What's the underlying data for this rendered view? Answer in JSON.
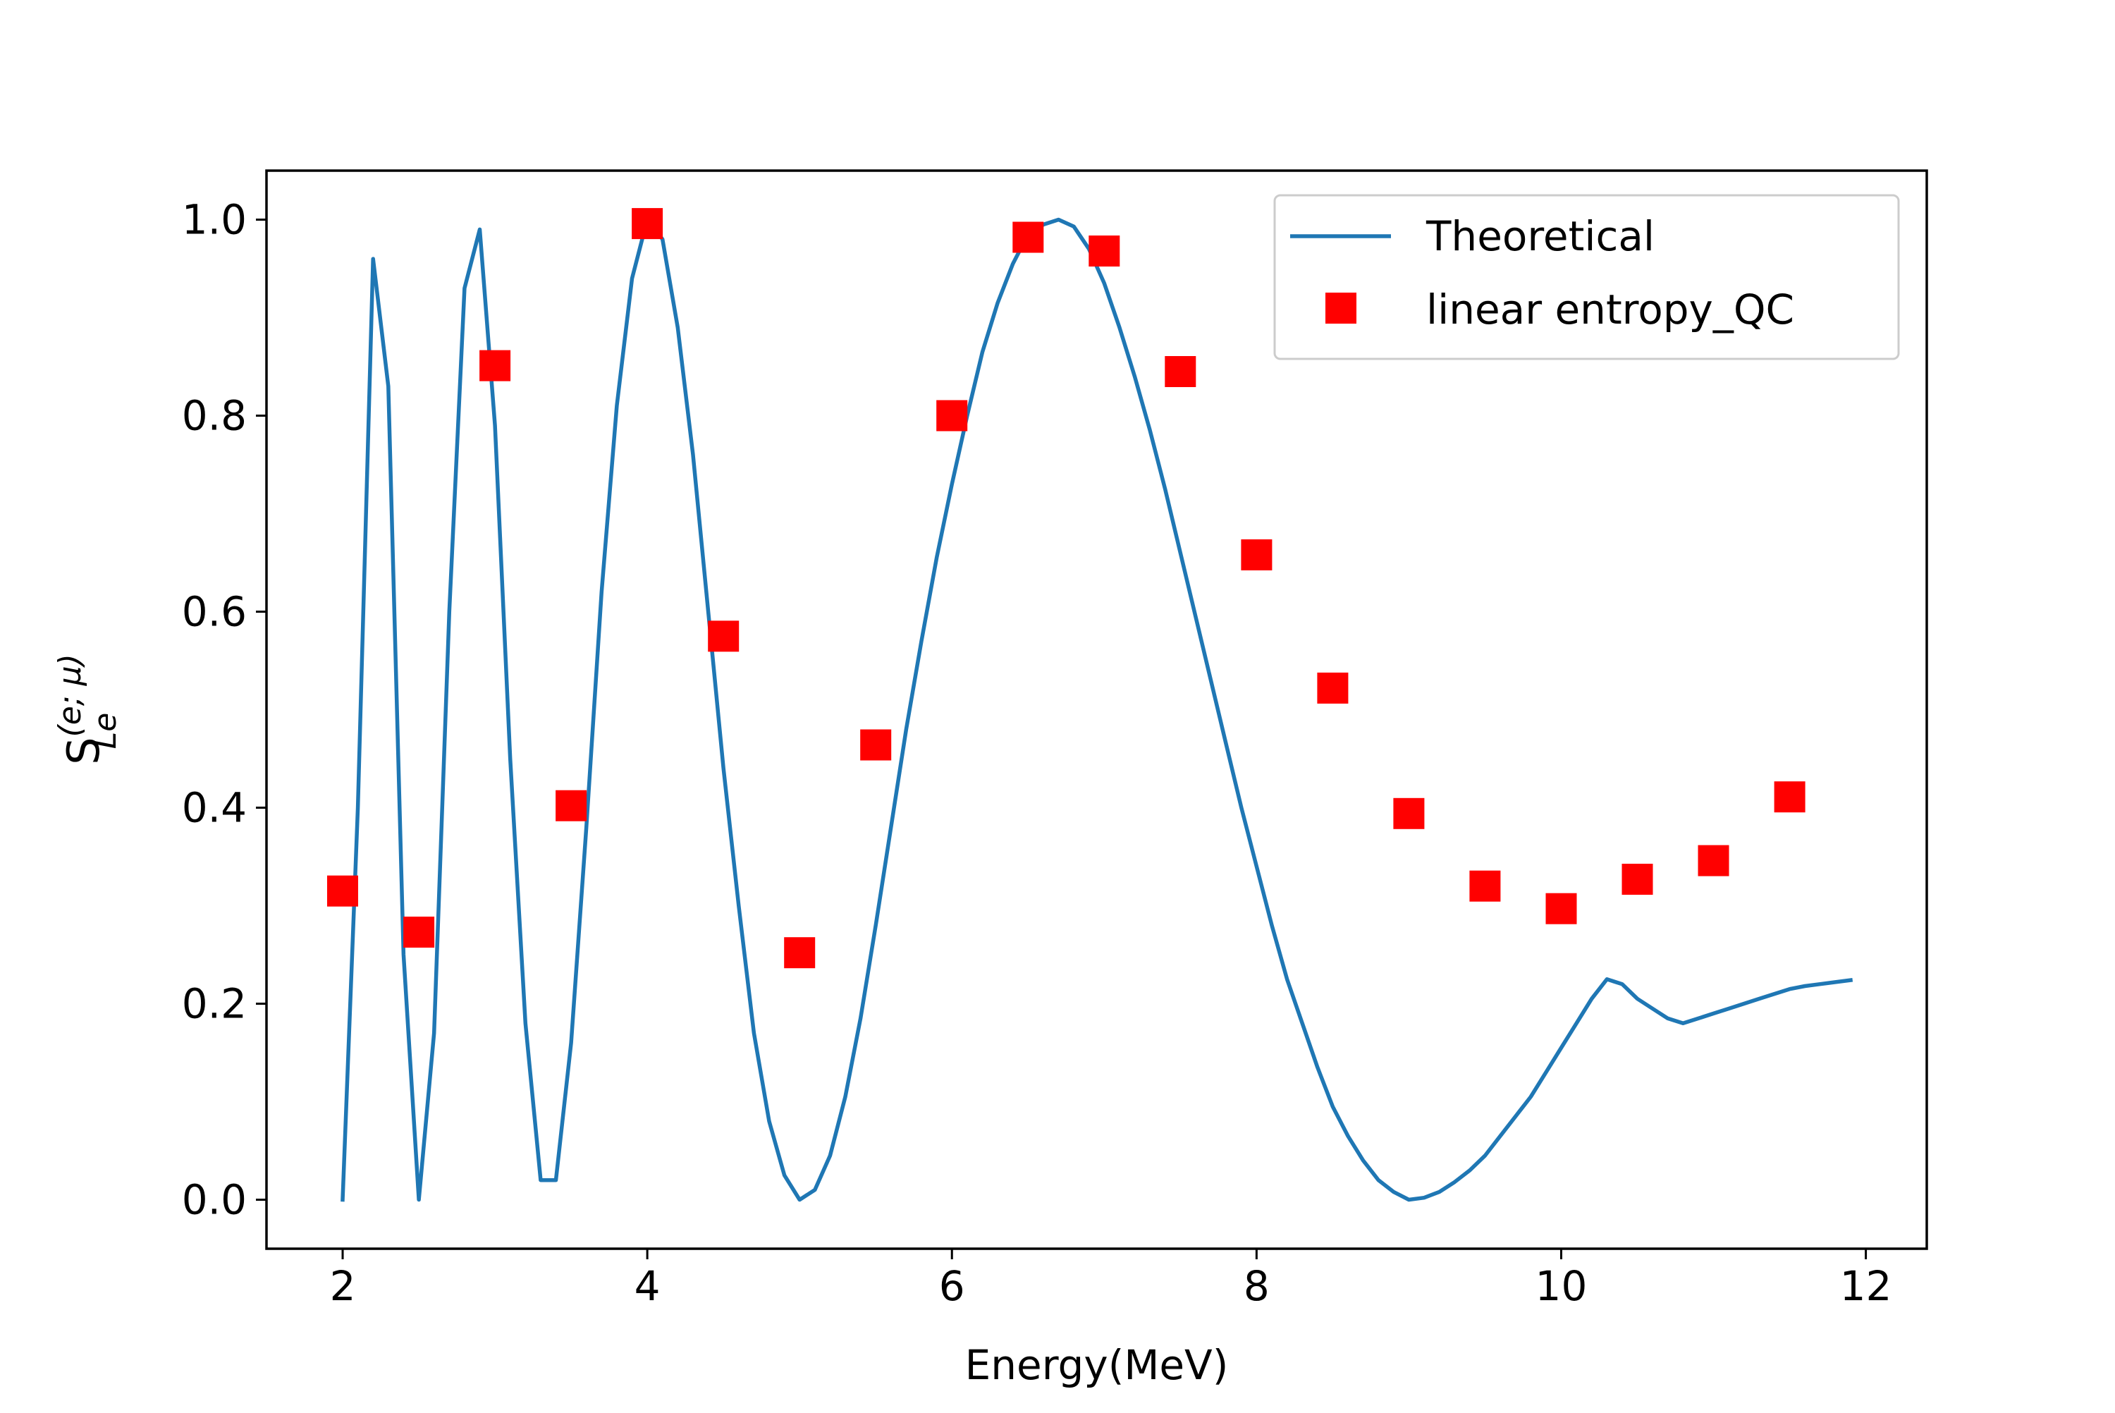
{
  "chart_data": {
    "type": "line",
    "xlabel": "Energy(MeV)",
    "ylabel_base": "S",
    "ylabel_sup": "(e; μ)",
    "ylabel_sub": "Le",
    "xlim": [
      1.5,
      12.4
    ],
    "ylim": [
      -0.05,
      1.05
    ],
    "xticks": [
      2,
      4,
      6,
      8,
      10,
      12
    ],
    "yticks": [
      0.0,
      0.2,
      0.4,
      0.6,
      0.8,
      1.0
    ],
    "grid": false,
    "legend_placement": "top-right",
    "series": [
      {
        "name": "Theoretical",
        "kind": "line",
        "color": "#1f77b4",
        "x": [
          2.0,
          2.1,
          2.2,
          2.3,
          2.4,
          2.5,
          2.6,
          2.7,
          2.8,
          2.9,
          3.0,
          3.1,
          3.2,
          3.3,
          3.4,
          3.5,
          3.6,
          3.7,
          3.8,
          3.9,
          4.0,
          4.1,
          4.2,
          4.3,
          4.4,
          4.5,
          4.6,
          4.7,
          4.8,
          4.9,
          5.0,
          5.1,
          5.2,
          5.3,
          5.4,
          5.5,
          5.6,
          5.7,
          5.8,
          5.9,
          6.0,
          6.1,
          6.2,
          6.3,
          6.4,
          6.5,
          6.6,
          6.7,
          6.8,
          6.9,
          7.0,
          7.1,
          7.2,
          7.3,
          7.4,
          7.5,
          7.6,
          7.7,
          7.8,
          7.9,
          8.0,
          8.1,
          8.2,
          8.3,
          8.4,
          8.5,
          8.6,
          8.7,
          8.8,
          8.9,
          9.0,
          9.1,
          9.2,
          9.3,
          9.4,
          9.5,
          9.6,
          9.7,
          9.8,
          9.9,
          10.0,
          10.1,
          10.2,
          10.3,
          10.4,
          10.5,
          10.6,
          10.7,
          10.8,
          10.9,
          11.0,
          11.1,
          11.2,
          11.3,
          11.4,
          11.5,
          11.6,
          11.7,
          11.8,
          11.9
        ],
        "y": [
          0.0,
          0.4,
          0.96,
          0.83,
          0.25,
          0.0,
          0.17,
          0.6,
          0.93,
          0.99,
          0.79,
          0.45,
          0.18,
          0.02,
          0.02,
          0.16,
          0.38,
          0.62,
          0.81,
          0.94,
          1.0,
          0.98,
          0.89,
          0.76,
          0.6,
          0.44,
          0.3,
          0.17,
          0.08,
          0.025,
          0.0,
          0.01,
          0.045,
          0.105,
          0.185,
          0.28,
          0.38,
          0.48,
          0.57,
          0.655,
          0.73,
          0.8,
          0.865,
          0.915,
          0.955,
          0.985,
          0.995,
          1.0,
          0.993,
          0.97,
          0.935,
          0.89,
          0.84,
          0.785,
          0.725,
          0.66,
          0.595,
          0.53,
          0.465,
          0.4,
          0.34,
          0.28,
          0.225,
          0.18,
          0.135,
          0.095,
          0.065,
          0.04,
          0.02,
          0.008,
          0.0,
          0.002,
          0.008,
          0.018,
          0.03,
          0.045,
          0.065,
          0.085,
          0.105,
          0.13,
          0.155,
          0.18,
          0.205,
          0.225,
          0.22,
          0.205,
          0.195,
          0.185,
          0.18,
          0.185,
          0.19,
          0.195,
          0.2,
          0.205,
          0.21,
          0.215,
          0.218,
          0.22,
          0.222,
          0.224
        ]
      },
      {
        "name": "linear entropy_QC",
        "kind": "scatter",
        "color": "#ff0000",
        "x": [
          2.0,
          2.5,
          3.0,
          3.5,
          4.0,
          4.5,
          5.0,
          5.5,
          6.0,
          6.5,
          7.0,
          7.5,
          8.0,
          8.5,
          9.0,
          9.5,
          10.0,
          10.5,
          11.0,
          11.5
        ],
        "y": [
          0.315,
          0.273,
          0.851,
          0.402,
          0.996,
          0.575,
          0.252,
          0.464,
          0.8,
          0.982,
          0.968,
          0.845,
          0.658,
          0.522,
          0.394,
          0.32,
          0.297,
          0.327,
          0.346,
          0.411
        ]
      }
    ]
  }
}
